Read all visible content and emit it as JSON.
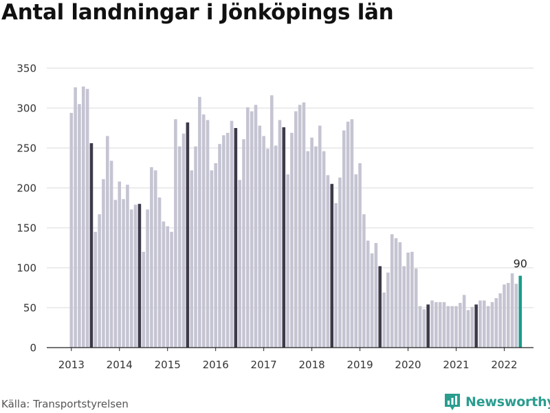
{
  "title": "Antal landningar i Jönköpings län",
  "source": "Källa: Transportstyrelsen",
  "brand": "Newsworthy",
  "colors": {
    "bar": "#c5c4d2",
    "highlight": "#3d3b4a",
    "latest": "#1a9c8c",
    "grid": "#d9d9d9",
    "brand": "#2a9d8f"
  },
  "chart_data": {
    "type": "bar",
    "xlabel": "",
    "ylabel": "",
    "ylim": [
      0,
      350
    ],
    "yticks": [
      0,
      50,
      100,
      150,
      200,
      250,
      300,
      350
    ],
    "xticks": [
      "2013",
      "2014",
      "2015",
      "2016",
      "2017",
      "2018",
      "2019",
      "2020",
      "2021",
      "2022"
    ],
    "grid": true,
    "start": "2013-01",
    "highlight_month": 5,
    "annotation": "90",
    "values": [
      294,
      326,
      305,
      327,
      324,
      256,
      145,
      167,
      211,
      265,
      234,
      185,
      208,
      186,
      204,
      173,
      179,
      180,
      120,
      173,
      226,
      222,
      188,
      158,
      152,
      145,
      286,
      252,
      268,
      282,
      222,
      252,
      314,
      292,
      285,
      222,
      231,
      255,
      266,
      269,
      284,
      275,
      210,
      261,
      301,
      296,
      304,
      278,
      265,
      249,
      316,
      253,
      285,
      276,
      217,
      269,
      296,
      304,
      307,
      246,
      263,
      252,
      278,
      246,
      216,
      205,
      181,
      213,
      272,
      283,
      286,
      217,
      231,
      167,
      134,
      118,
      131,
      102,
      69,
      94,
      142,
      137,
      132,
      102,
      119,
      120,
      99,
      52,
      48,
      54,
      59,
      57,
      57,
      57,
      52,
      52,
      52,
      56,
      66,
      47,
      51,
      54,
      59,
      59,
      52,
      57,
      62,
      68,
      79,
      81,
      93,
      80,
      90
    ]
  }
}
